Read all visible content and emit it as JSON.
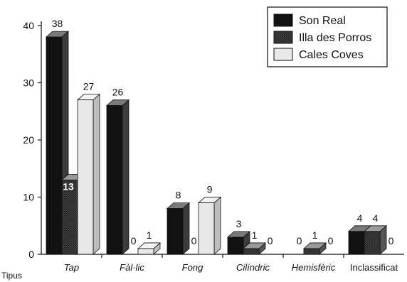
{
  "chart_data": {
    "type": "bar",
    "style": "3d-grouped",
    "xlabel": "Tipus",
    "ylabel": "",
    "ylim": [
      0,
      40
    ],
    "yticks": [
      0,
      10,
      20,
      30,
      40
    ],
    "grid": false,
    "legend_position": "top-right",
    "categories": [
      "Tap",
      "Fàl·lic",
      "Fong",
      "Cilíndric",
      "Hemisfèric",
      "Inclassificat"
    ],
    "categories_italic": [
      true,
      true,
      true,
      true,
      true,
      false
    ],
    "series": [
      {
        "name": "Son Real",
        "values": [
          38,
          26,
          8,
          3,
          0,
          4
        ],
        "color": "#111111"
      },
      {
        "name": "Illa des Porros",
        "values": [
          13,
          0,
          0,
          1,
          1,
          4
        ],
        "color": "#3a3a3a"
      },
      {
        "name": "Cales Coves",
        "values": [
          27,
          1,
          9,
          0,
          0,
          0
        ],
        "color": "#e8e8e8"
      }
    ]
  }
}
